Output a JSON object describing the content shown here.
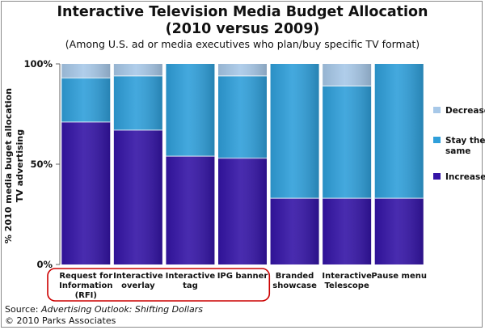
{
  "chart_data": {
    "type": "bar",
    "stacked": true,
    "title_line1": "Interactive Television Media Budget Allocation",
    "title_line2": "(2010 versus 2009)",
    "subtitle": "(Among U.S. ad or media executives who plan/buy specific TV format)",
    "ylabel_line1": "% 2010 media buget allocation",
    "ylabel_line2": "TV advertising",
    "ylim": [
      0,
      100
    ],
    "yticks": [
      "0%",
      "50%",
      "100%"
    ],
    "categories": [
      [
        "Request for",
        "Information",
        "(RFI)"
      ],
      [
        "Interactive",
        "overlay"
      ],
      [
        "Interactive",
        "tag"
      ],
      [
        "IPG banner"
      ],
      [
        "Branded",
        "showcase"
      ],
      [
        "Interactive",
        "Telescope"
      ],
      [
        "Pause menu"
      ]
    ],
    "series": [
      {
        "name": "Increase",
        "color": "#3414a6",
        "values": [
          71,
          67,
          54,
          53,
          33,
          33,
          33
        ]
      },
      {
        "name": "Stay the same",
        "color": "#2f9fda",
        "values": [
          22,
          27,
          46,
          41,
          67,
          56,
          67
        ]
      },
      {
        "name": "Decrease",
        "color": "#a7c8e8",
        "values": [
          7,
          6,
          0,
          6,
          0,
          11,
          0
        ]
      }
    ],
    "legend": [
      {
        "label_line1": "Decrease",
        "label_line2": "",
        "color": "#a7c8e8"
      },
      {
        "label_line1": "Stay the",
        "label_line2": "same",
        "color": "#2f9fda"
      },
      {
        "label_line1": "Increase",
        "label_line2": "",
        "color": "#3414a6"
      }
    ],
    "legend_position": "right",
    "grid": false,
    "highlight_group": [
      0,
      3
    ]
  },
  "footer": {
    "source_prefix": "Source:  ",
    "source_title": "Advertising Outlook: Shifting Dollars",
    "copyright": "© 2010 Parks Associates"
  }
}
